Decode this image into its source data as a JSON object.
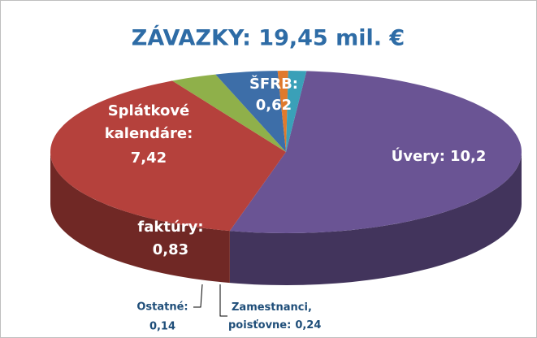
{
  "chart_data": {
    "type": "pie3d",
    "title": "ZÁVAZKY: 19,45 mil. €",
    "categories": [
      "Úvery:",
      "Splátkové kalendáre:",
      "ŠFRB:",
      "faktúry:",
      "Ostatné:",
      "Zamestnanci, poisťovne:"
    ],
    "values": [
      10.2,
      7.42,
      0.62,
      0.83,
      0.14,
      0.24
    ],
    "value_labels": [
      "10,2",
      "7,42",
      "0,62",
      "0,83",
      "0,14",
      "0,24"
    ],
    "colors": [
      "#6a5494",
      "#b5413c",
      "#8fb04a",
      "#3d6ea8",
      "#e07a2c",
      "#3aa0b8"
    ]
  }
}
